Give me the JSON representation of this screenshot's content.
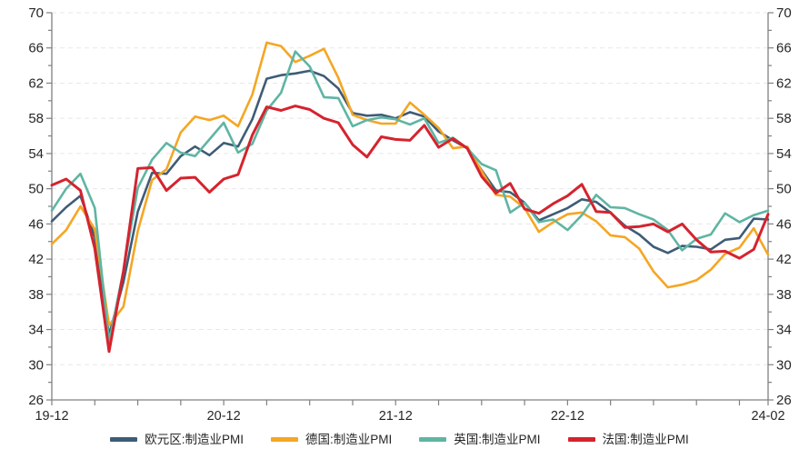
{
  "chart_data": {
    "type": "line",
    "title": "",
    "xlabel": "",
    "ylabel": "",
    "x_unit": "month",
    "x_range": [
      "2019-12",
      "2024-02"
    ],
    "x_tick_labels": [
      {
        "index": 0,
        "label": "19-12"
      },
      {
        "index": 12,
        "label": "20-12"
      },
      {
        "index": 24,
        "label": "21-12"
      },
      {
        "index": 36,
        "label": "22-12"
      },
      {
        "index": 50,
        "label": "24-02"
      }
    ],
    "minor_x_tick_every_months": 3,
    "ylim": [
      26,
      70
    ],
    "y_major_step": 4,
    "y_minor_step": 2,
    "grid": "horizontal dashed lines at major y ticks, left and right y axes both labeled",
    "legend_position": "bottom-center",
    "axis_color": "#808080",
    "grid_color": "#e7e7e7",
    "label_color": "#262626",
    "series": [
      {
        "name": "欧元区:制造业PMI",
        "color": "#3E5C76",
        "values": [
          46.3,
          47.9,
          49.2,
          44.5,
          33.4,
          39.4,
          47.4,
          51.8,
          51.7,
          53.7,
          54.8,
          53.8,
          55.2,
          54.8,
          57.9,
          62.5,
          62.9,
          63.1,
          63.4,
          62.8,
          61.4,
          58.6,
          58.3,
          58.4,
          58.0,
          58.7,
          58.2,
          56.5,
          55.5,
          54.6,
          52.1,
          49.8,
          49.6,
          48.4,
          46.4,
          47.1,
          47.8,
          48.8,
          48.5,
          47.3,
          45.8,
          44.8,
          43.4,
          42.7,
          43.5,
          43.4,
          43.1,
          44.2,
          44.4,
          46.6,
          46.5
        ]
      },
      {
        "name": "德国:制造业PMI",
        "color": "#F5A623",
        "values": [
          43.7,
          45.3,
          48.0,
          45.4,
          34.5,
          36.6,
          45.2,
          51.0,
          52.2,
          56.4,
          58.2,
          57.8,
          58.3,
          57.1,
          60.7,
          66.6,
          66.2,
          64.4,
          65.1,
          65.9,
          62.6,
          58.4,
          57.8,
          57.4,
          57.4,
          59.8,
          58.4,
          56.9,
          54.6,
          54.8,
          52.0,
          49.3,
          49.1,
          47.8,
          45.1,
          46.2,
          47.1,
          47.3,
          46.3,
          44.7,
          44.5,
          43.2,
          40.6,
          38.8,
          39.1,
          39.6,
          40.8,
          42.6,
          43.3,
          45.5,
          42.5
        ]
      },
      {
        "name": "英国:制造业PMI",
        "color": "#5FB5A3",
        "values": [
          47.5,
          50.0,
          51.7,
          47.8,
          32.6,
          40.7,
          50.1,
          53.3,
          55.2,
          54.1,
          53.7,
          55.6,
          57.5,
          54.1,
          55.1,
          58.9,
          60.9,
          65.6,
          63.9,
          60.4,
          60.3,
          57.1,
          57.8,
          58.1,
          57.9,
          57.3,
          58.0,
          55.2,
          55.8,
          54.6,
          52.8,
          52.1,
          47.3,
          48.4,
          46.2,
          46.5,
          45.3,
          47.0,
          49.3,
          47.9,
          47.8,
          47.1,
          46.5,
          45.3,
          43.0,
          44.3,
          44.8,
          47.2,
          46.2,
          47.0,
          47.5
        ]
      },
      {
        "name": "法国:制造业PMI",
        "color": "#D5232E",
        "values": [
          50.4,
          51.1,
          49.8,
          43.2,
          31.5,
          40.6,
          52.3,
          52.4,
          49.8,
          51.2,
          51.3,
          49.6,
          51.1,
          51.6,
          56.1,
          59.3,
          58.9,
          59.4,
          59.0,
          58.0,
          57.5,
          55.0,
          53.6,
          55.9,
          55.6,
          55.5,
          57.2,
          54.7,
          55.7,
          54.6,
          51.4,
          49.5,
          50.6,
          47.7,
          47.2,
          48.3,
          49.2,
          50.5,
          47.4,
          47.3,
          45.6,
          45.7,
          46.0,
          45.1,
          46.0,
          44.2,
          42.8,
          42.9,
          42.1,
          43.1,
          47.1
        ]
      }
    ]
  }
}
